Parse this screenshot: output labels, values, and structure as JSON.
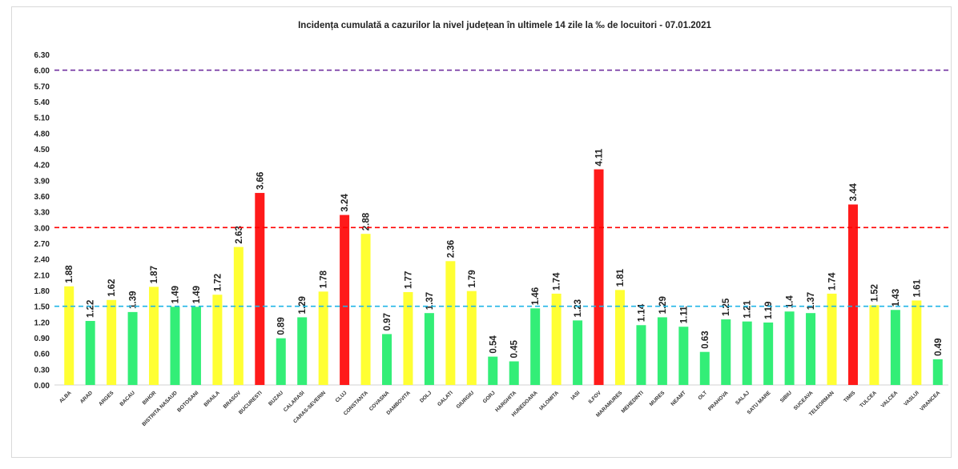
{
  "chart_data": {
    "type": "bar",
    "title": "Incidența cumulată a cazurilor la nivel județean în ultimele 14 zile la ‰ de locuitori - 07.01.2021",
    "xlabel": "",
    "ylabel": "",
    "ylim": [
      0,
      6.3
    ],
    "yticks": [
      "0.00",
      "0.30",
      "0.60",
      "0.90",
      "1.20",
      "1.50",
      "1.80",
      "2.10",
      "2.40",
      "2.70",
      "3.00",
      "3.30",
      "3.60",
      "3.90",
      "4.20",
      "4.50",
      "4.80",
      "5.10",
      "5.40",
      "5.70",
      "6.00",
      "6.30"
    ],
    "grid": false,
    "categories": [
      "ALBA",
      "ARAD",
      "ARGES",
      "BACAU",
      "BIHOR",
      "BISTRITA NASAUD",
      "BOTOSANI",
      "BRAILA",
      "BRASOV",
      "BUCURESTI",
      "BUZAU",
      "CALARASI",
      "CARAS-SEVERIN",
      "CLUJ",
      "CONSTANTA",
      "COVASNA",
      "DAMBOVITA",
      "DOLJ",
      "GALATI",
      "GIURGIU",
      "GORJ",
      "HARGHITA",
      "HUNEDOARA",
      "IALOMITA",
      "IASI",
      "ILFOV",
      "MARAMURES",
      "MEHEDINTI",
      "MURES",
      "NEAMT",
      "OLT",
      "PRAHOVA",
      "SALAJ",
      "SATU MARE",
      "SIBIU",
      "SUCEAVA",
      "TELEORMAN",
      "TIMIS",
      "TULCEA",
      "VALCEA",
      "VASLUI",
      "VRANCEA"
    ],
    "values": [
      1.88,
      1.22,
      1.62,
      1.39,
      1.87,
      1.49,
      1.49,
      1.72,
      2.63,
      3.66,
      0.89,
      1.29,
      1.78,
      3.24,
      2.88,
      0.97,
      1.77,
      1.37,
      2.36,
      1.79,
      0.54,
      0.45,
      1.46,
      1.74,
      1.23,
      4.11,
      1.81,
      1.14,
      1.29,
      1.11,
      0.63,
      1.25,
      1.21,
      1.19,
      1.4,
      1.37,
      1.74,
      3.44,
      1.52,
      1.43,
      1.61,
      0.49
    ],
    "value_labels": [
      "1.88",
      "1.22",
      "1.62",
      "1.39",
      "1.87",
      "1.49",
      "1.49",
      "1.72",
      "2.63",
      "3.66",
      "0.89",
      "1.29",
      "1.78",
      "3.24",
      "2.88",
      "0.97",
      "1.77",
      "1.37",
      "2.36",
      "1.79",
      "0.54",
      "0.45",
      "1.46",
      "1.74",
      "1.23",
      "4.11",
      "1.81",
      "1.14",
      "1.29",
      "1.11",
      "0.63",
      "1.25",
      "1.21",
      "1.19",
      "1.4",
      "1.37",
      "1.74",
      "3.44",
      "1.52",
      "1.43",
      "1.61",
      "0.49"
    ],
    "colors": {
      "low": "#33ee77",
      "mid": "#ffff33",
      "high": "#ff1a1a"
    },
    "thresholds": [
      {
        "value": 6.0,
        "color": "#7030a0"
      },
      {
        "value": 3.0,
        "color": "#ff0000"
      },
      {
        "value": 1.5,
        "color": "#1fb4e6"
      }
    ]
  }
}
